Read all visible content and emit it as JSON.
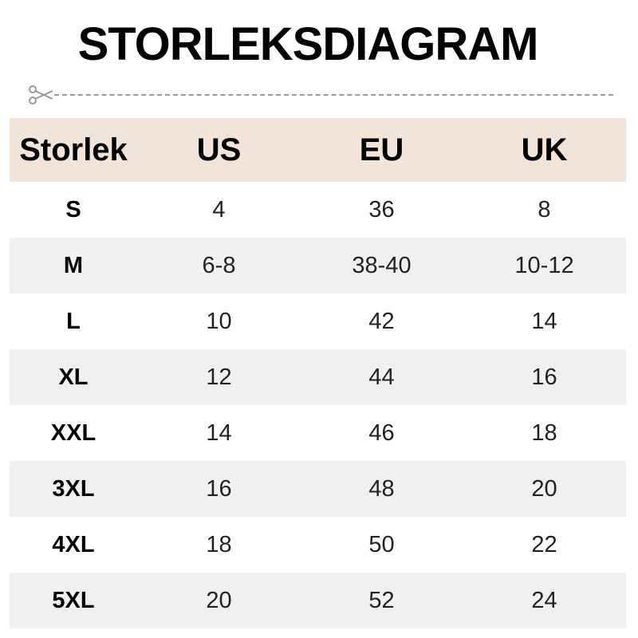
{
  "title": "STORLEKSDIAGRAM",
  "headers": [
    "Storlek",
    "US",
    "EU",
    "UK"
  ],
  "rows": [
    [
      "S",
      "4",
      "36",
      "8"
    ],
    [
      "M",
      "6-8",
      "38-40",
      "10-12"
    ],
    [
      "L",
      "10",
      "42",
      "14"
    ],
    [
      "XL",
      "12",
      "44",
      "16"
    ],
    [
      "XXL",
      "14",
      "46",
      "18"
    ],
    [
      "3XL",
      "16",
      "48",
      "20"
    ],
    [
      "4XL",
      "18",
      "50",
      "22"
    ],
    [
      "5XL",
      "20",
      "52",
      "24"
    ]
  ],
  "colors": {
    "header_bg": "#f3e4da",
    "stripe": "#f0f0f0"
  },
  "icons": {
    "cut_line": "scissors-icon"
  }
}
